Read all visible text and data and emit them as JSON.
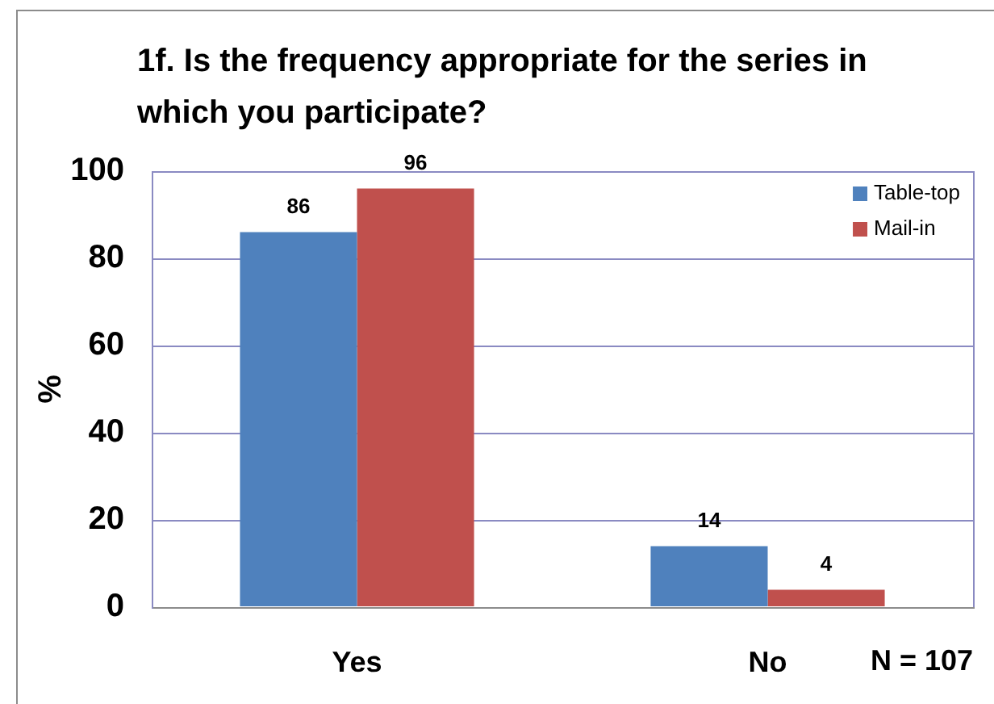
{
  "chart_data": {
    "type": "bar",
    "title": "1f. Is the frequency appropriate for the series in which you participate?",
    "ylabel": "%",
    "categories": [
      "Yes",
      "No"
    ],
    "series": [
      {
        "name": "Table-top",
        "color": "#4f81bd",
        "values": [
          86,
          14
        ]
      },
      {
        "name": "Mail-in",
        "color": "#c0504d",
        "values": [
          96,
          4
        ]
      }
    ],
    "ylim": [
      0,
      100
    ],
    "yticks": [
      0,
      20,
      40,
      60,
      80,
      100
    ],
    "grid": "y",
    "legend": "top right",
    "data_labels": true,
    "annotations": [
      "N = 107"
    ]
  }
}
